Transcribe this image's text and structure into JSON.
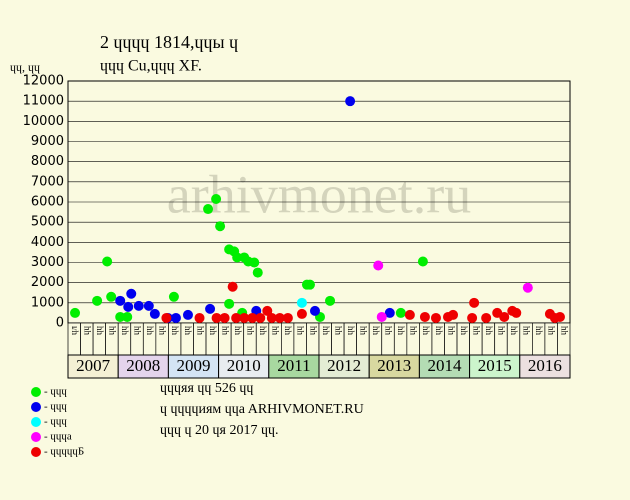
{
  "chart_data": {
    "type": "scatter",
    "title": "2 ɥɥɥɥ 1814,ɥɥы ɥ",
    "subtitle": "ɥɥɥ Cu,ɥɥɥ XF.",
    "y_label": "ɥɥ, ɥɥ",
    "watermark": "arhivmonet.ru",
    "xlim": [
      2007,
      2017
    ],
    "xticks": [
      2007,
      2008,
      2009,
      2010,
      2011,
      2012,
      2013,
      2014,
      2015,
      2016
    ],
    "year_colors": [
      "#f4f0d4",
      "#e4d4ec",
      "#d4e4f4",
      "#e8ecf0",
      "#a8d8a0",
      "#e4ecd4",
      "#d8d8a0",
      "#b4dcb4",
      "#ccf4cc",
      "#ece0e0"
    ],
    "quarter_labels": [
      "ɥл",
      "ɥɥ",
      "ɥɥ",
      "ɥɥ",
      "ɥɥ",
      "ɥɥ",
      "ɥɥ",
      "ɥɥ",
      "ɥɥ",
      "ɥɥ",
      "ɥɥ",
      "ɥɥ",
      "ɥɥ",
      "ɥɥ",
      "ɥɥ",
      "ɥɥ",
      "ɥɥ",
      "ɥɥ",
      "ɥɥ",
      "ɥɥ",
      "ɥɥ",
      "ɥɥ",
      "ɥɥ",
      "ɥɥ",
      "ɥɥ",
      "ɥɥ",
      "ɥɥ",
      "ɥɥ",
      "ɥɥ",
      "ɥɥ",
      "ɥɥ",
      "ɥɥ",
      "ɥɥ",
      "ɥɥ",
      "ɥɥ",
      "ɥɥ",
      "ɥɥ",
      "ɥɥ",
      "ɥɥ",
      "ɥɥ"
    ],
    "ylim": [
      0,
      12000
    ],
    "yticks": [
      0,
      1000,
      2000,
      3000,
      4000,
      5000,
      6000,
      7000,
      8000,
      9000,
      10000,
      11000,
      12000
    ],
    "grid": true,
    "series": [
      {
        "name": "- ɥɥɥ",
        "color": "#00ee00",
        "x": [
          2007.14,
          2007.58,
          2007.78,
          2007.86,
          2008.04,
          2008.18,
          2009.11,
          2009.79,
          2009.95,
          2010.03,
          2010.21,
          2010.31,
          2010.37,
          2010.51,
          2010.59,
          2010.71,
          2010.78,
          2010.21,
          2010.47,
          2011.76,
          2011.82,
          2012.02,
          2012.22,
          2013.63,
          2014.07
        ],
        "values": [
          500,
          1100,
          3050,
          1300,
          300,
          300,
          1300,
          5650,
          6150,
          4800,
          3650,
          3550,
          3250,
          3250,
          3050,
          3000,
          2500,
          950,
          500,
          1900,
          1900,
          300,
          1100,
          500,
          3050
        ]
      },
      {
        "name": "- ɥɥɥ",
        "color": "#0000ee",
        "x": [
          2008.04,
          2008.2,
          2008.26,
          2008.41,
          2008.61,
          2008.73,
          2008.99,
          2009.15,
          2009.39,
          2009.83,
          2010.75,
          2011.92,
          2012.62,
          2013.41
        ],
        "values": [
          1100,
          800,
          1450,
          850,
          850,
          450,
          250,
          250,
          400,
          700,
          600,
          600,
          11000,
          500
        ]
      },
      {
        "name": "- ɥɥɥ",
        "color": "#00ffff",
        "x": [
          2011.66
        ],
        "values": [
          1000
        ]
      },
      {
        "name": "- ɥɥɥa",
        "color": "#ff00ff",
        "x": [
          2013.18,
          2013.25,
          2016.16
        ],
        "values": [
          2850,
          300,
          1750
        ]
      },
      {
        "name": "- ɥɥɥɥɥБ",
        "color": "#ee0000",
        "x": [
          2008.96,
          2009.62,
          2009.96,
          2010.12,
          2010.28,
          2010.35,
          2010.51,
          2010.67,
          2010.83,
          2010.97,
          2011.06,
          2011.22,
          2011.38,
          2011.66,
          2013.81,
          2014.11,
          2014.33,
          2014.57,
          2014.67,
          2015.05,
          2015.09,
          2015.33,
          2015.55,
          2015.69,
          2015.85,
          2015.93,
          2016.6,
          2016.7,
          2016.8
        ],
        "values": [
          250,
          250,
          250,
          250,
          1800,
          250,
          250,
          250,
          250,
          600,
          250,
          250,
          250,
          450,
          400,
          300,
          250,
          300,
          400,
          250,
          1000,
          250,
          500,
          300,
          600,
          500,
          450,
          250,
          300
        ]
      }
    ],
    "notes": [
      "ɥɥɥяя ɥɥ 526 ɥɥ",
      "ɥ ɥɥɥɥиям ɥɥa ARHIVMONET.RU",
      "ɥɥɥ ɥ 20 ɥя 2017 ɥɥ."
    ]
  }
}
